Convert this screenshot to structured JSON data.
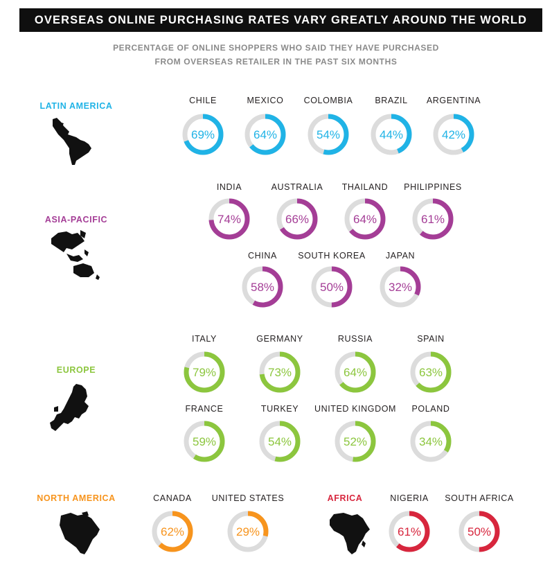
{
  "title": "OVERSEAS ONLINE PURCHASING RATES VARY GREATLY AROUND THE WORLD",
  "subtitle_lines": [
    "PERCENTAGE OF ONLINE SHOPPERS WHO SAID THEY HAVE PURCHASED",
    "FROM OVERSEAS RETAILER IN THE PAST SIX MONTHS"
  ],
  "colors": {
    "latin_america": "#20b3e6",
    "asia_pacific": "#a43d96",
    "europe": "#8cc63e",
    "north_america": "#f7941d",
    "africa": "#d7263d",
    "track": "#dcdcdc",
    "banner": "#0f0f0f"
  },
  "regions": {
    "latin_america": {
      "label": "LATIN AMERICA",
      "map_icon": "latin-america-map-icon"
    },
    "asia_pacific": {
      "label": "ASIA-PACIFIC",
      "map_icon": "asia-pacific-map-icon"
    },
    "europe": {
      "label": "EUROPE",
      "map_icon": "europe-map-icon"
    },
    "north_america": {
      "label": "NORTH AMERICA",
      "map_icon": "north-america-map-icon"
    },
    "africa": {
      "label": "AFRICA",
      "map_icon": "africa-map-icon"
    }
  },
  "chart_data": {
    "type": "donut",
    "unit": "%",
    "title": "OVERSEAS ONLINE PURCHASING RATES VARY GREATLY AROUND THE WORLD",
    "subtitle": "PERCENTAGE OF ONLINE SHOPPERS WHO SAID THEY HAVE PURCHASED FROM OVERSEAS RETAILER IN THE PAST SIX MONTHS",
    "series": [
      {
        "name": "LATIN AMERICA",
        "countries": [
          "CHILE",
          "MEXICO",
          "COLOMBIA",
          "BRAZIL",
          "ARGENTINA"
        ],
        "values": [
          69,
          64,
          54,
          44,
          42
        ]
      },
      {
        "name": "ASIA-PACIFIC",
        "countries": [
          "INDIA",
          "AUSTRALIA",
          "THAILAND",
          "PHILIPPINES",
          "CHINA",
          "SOUTH KOREA",
          "JAPAN"
        ],
        "values": [
          74,
          66,
          64,
          61,
          58,
          50,
          32
        ]
      },
      {
        "name": "EUROPE",
        "countries": [
          "ITALY",
          "GERMANY",
          "RUSSIA",
          "SPAIN",
          "FRANCE",
          "TURKEY",
          "UNITED KINGDOM",
          "POLAND"
        ],
        "values": [
          79,
          73,
          64,
          63,
          59,
          54,
          52,
          34
        ]
      },
      {
        "name": "NORTH AMERICA",
        "countries": [
          "CANADA",
          "UNITED STATES"
        ],
        "values": [
          62,
          29
        ]
      },
      {
        "name": "AFRICA",
        "countries": [
          "NIGERIA",
          "SOUTH AFRICA"
        ],
        "values": [
          61,
          50
        ]
      }
    ]
  }
}
